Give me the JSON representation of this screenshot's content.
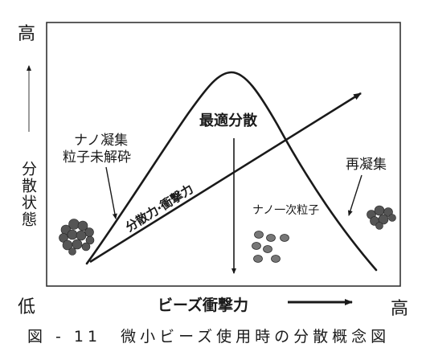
{
  "axes": {
    "y_high": "高",
    "y_low": "低",
    "y_title": "分散状態",
    "x_title": "ビーズ衝撃力",
    "x_high": "高"
  },
  "annotations": {
    "optimal": "最適分散",
    "nano_agg_line1": "ナノ凝集",
    "nano_agg_line2": "粒子未解砕",
    "reagg": "再凝集",
    "primary": "ナノ一次粒子",
    "force": "分散力·衝撃力"
  },
  "caption": "図 - 11　微小ビーズ使用時の分散概念図",
  "colors": {
    "ink": "#1a1a1a",
    "frame": "#333333",
    "particle": "#555555"
  }
}
